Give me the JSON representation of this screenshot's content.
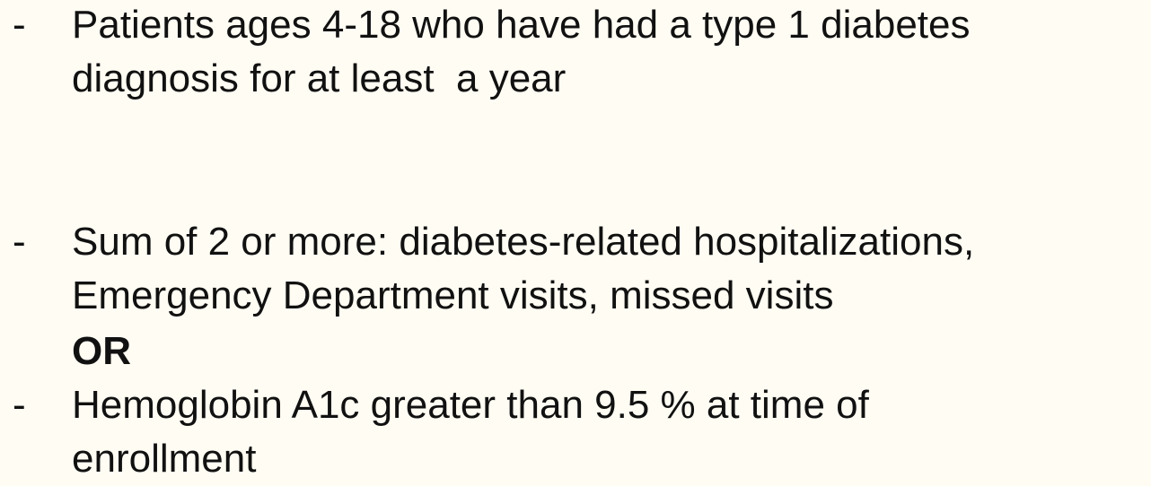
{
  "items": [
    {
      "bullet": "-",
      "lines": [
        "Patients ages 4-18 who have had a type 1 diabetes",
        "diagnosis for at least  a year"
      ]
    },
    {
      "bullet": "-",
      "lines": [
        "Sum of 2 or more: diabetes-related hospitalizations,",
        "Emergency Department visits, missed visits"
      ]
    },
    {
      "bullet": "-",
      "lines": [
        "Hemoglobin A1c greater than 9.5 % at time of",
        "enrollment"
      ]
    }
  ],
  "connector": "OR"
}
